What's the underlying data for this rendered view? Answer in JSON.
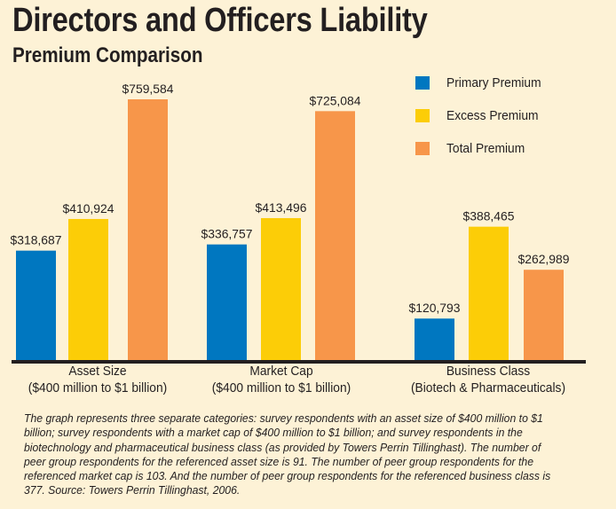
{
  "chart_data": {
    "type": "bar",
    "title": "Directors and Officers Liability",
    "subtitle": "Premium Comparison",
    "xlabel": "",
    "ylabel": "",
    "ylim": [
      0,
      800000
    ],
    "grid": false,
    "legend_position": "top-right",
    "categories": [
      {
        "line1": "Asset Size",
        "line2": "($400 million to $1 billion)"
      },
      {
        "line1": "Market Cap",
        "line2": "($400 million to $1 billion)"
      },
      {
        "line1": "Business Class",
        "line2": "(Biotech & Pharmaceuticals)"
      }
    ],
    "series": [
      {
        "name": "Primary Premium",
        "color": "#0077c0",
        "values": [
          318687,
          336757,
          120793
        ],
        "labels": [
          "$318,687",
          "$336,757",
          "$120,793"
        ]
      },
      {
        "name": "Excess Premium",
        "color": "#fccd07",
        "values": [
          410924,
          413496,
          388465
        ],
        "labels": [
          "$410,924",
          "$413,496",
          "$388,465"
        ]
      },
      {
        "name": "Total Premium",
        "color": "#f7964a",
        "values": [
          759584,
          725084,
          262989
        ],
        "labels": [
          "$759,584",
          "$725,084",
          "$262,989"
        ]
      }
    ],
    "footnote": "The graph represents three separate categories: survey respondents with an asset size of $400 million to $1 billion; survey respondents with a market cap of $400 million to $1 billion; and survey respondents in the biotechnology and pharmaceutical business class (as provided by Towers Perrin Tillinghast). The number of peer group respondents for the referenced asset size is 91. The number of peer group respondents for the referenced market cap is 103. And the number of peer group respondents for the referenced business class is 377. Source: Towers Perrin Tillinghast, 2006."
  }
}
